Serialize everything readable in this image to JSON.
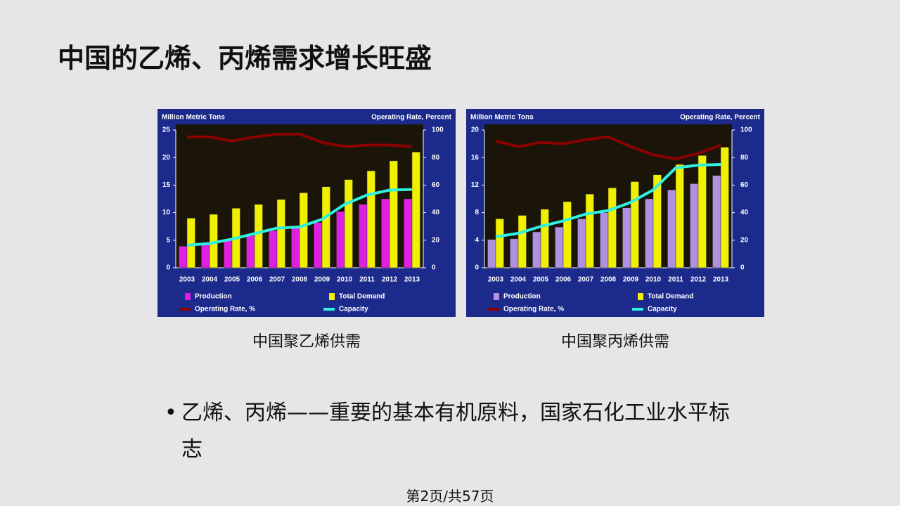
{
  "slide_title": "中国的乙烯、丙烯需求增长旺盛",
  "bullet": "乙烯、丙烯——重要的基本有机原料，国家石化工业水平标志",
  "footer": "第2页/共57页",
  "chart_data": [
    {
      "type": "bar",
      "caption": "中国聚乙烯供需",
      "y_label": "Million Metric Tons",
      "y2_label": "Operating Rate, Percent",
      "categories": [
        "2003",
        "2004",
        "2005",
        "2006",
        "2007",
        "2008",
        "2009",
        "2010",
        "2011",
        "2012",
        "2013"
      ],
      "ylim": [
        0,
        25
      ],
      "yticks": [
        0,
        5,
        10,
        15,
        20,
        25
      ],
      "y2lim": [
        0,
        100
      ],
      "y2ticks": [
        0,
        20,
        40,
        60,
        80,
        100
      ],
      "series": [
        {
          "name": "Production",
          "type": "bar",
          "color": "#e020e0",
          "values": [
            3.9,
            4.5,
            5.0,
            5.8,
            6.7,
            7.3,
            8.2,
            10.2,
            11.5,
            12.5,
            12.5
          ]
        },
        {
          "name": "Total Demand",
          "type": "bar",
          "color": "#f0f000",
          "values": [
            9.0,
            9.7,
            10.8,
            11.5,
            12.4,
            13.6,
            14.7,
            16.0,
            17.6,
            19.4,
            21.0
          ]
        },
        {
          "name": "Operating Rate, %",
          "type": "line",
          "axis": "y2",
          "color": "#8b0000",
          "values": [
            95,
            95,
            92,
            95,
            97,
            97,
            91,
            88,
            89,
            89,
            88
          ]
        },
        {
          "name": "Capacity",
          "type": "line",
          "color": "#30f0e0",
          "values": [
            4.1,
            4.4,
            5.2,
            6.2,
            7.2,
            7.4,
            8.8,
            11.5,
            13.2,
            14.1,
            14.2
          ]
        }
      ]
    },
    {
      "type": "bar",
      "caption": "中国聚丙烯供需",
      "y_label": "Million Metric Tons",
      "y2_label": "Operating Rate, Percent",
      "categories": [
        "2003",
        "2004",
        "2005",
        "2006",
        "2007",
        "2008",
        "2009",
        "2010",
        "2011",
        "2012",
        "2013"
      ],
      "ylim": [
        0,
        20
      ],
      "yticks": [
        0,
        4,
        8,
        12,
        16,
        20
      ],
      "y2lim": [
        0,
        100
      ],
      "y2ticks": [
        0,
        20,
        40,
        60,
        80,
        100
      ],
      "series": [
        {
          "name": "Production",
          "type": "bar",
          "color": "#b090e0",
          "values": [
            4.1,
            4.2,
            5.2,
            5.9,
            7.1,
            8.0,
            8.7,
            10.0,
            11.3,
            12.2,
            13.4
          ]
        },
        {
          "name": "Total Demand",
          "type": "bar",
          "color": "#f0f000",
          "values": [
            7.1,
            7.6,
            8.5,
            9.6,
            10.7,
            11.6,
            12.5,
            13.5,
            15.0,
            16.3,
            17.5
          ]
        },
        {
          "name": "Operating Rate, %",
          "type": "line",
          "axis": "y2",
          "color": "#8b0000",
          "values": [
            92,
            88,
            91,
            90,
            93,
            95,
            88,
            82,
            79,
            83,
            89
          ]
        },
        {
          "name": "Capacity",
          "type": "line",
          "color": "#30f0e0",
          "values": [
            4.5,
            5.0,
            6.0,
            6.8,
            7.8,
            8.3,
            9.5,
            11.3,
            14.5,
            14.9,
            15.0
          ]
        }
      ]
    }
  ]
}
